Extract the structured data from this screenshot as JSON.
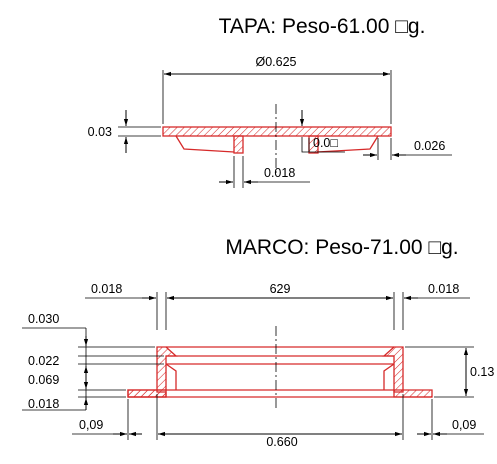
{
  "tapa": {
    "title": "TAPA: Peso-61.00 □g.",
    "dim_diameter": "Ø0.625",
    "dim_thickness": "0.03",
    "dim_rib_gap": "0.0□",
    "dim_edge": "0.026",
    "dim_rib_width": "0.018"
  },
  "marco": {
    "title": "MARCO: Peso-71.00 □g.",
    "dim_left_wall": "0.018",
    "dim_inner_span": "629",
    "dim_right_wall": "0.018",
    "dim_v1": "0.030",
    "dim_v2": "0.022",
    "dim_v3": "0.069",
    "dim_v4": "0.018",
    "dim_height": "0.13",
    "dim_flange_left": "0,09",
    "dim_base": "0.660",
    "dim_flange_right": "0,09"
  },
  "colors": {
    "section_outline": "#d62a2a",
    "dimension_lines": "#000000"
  }
}
